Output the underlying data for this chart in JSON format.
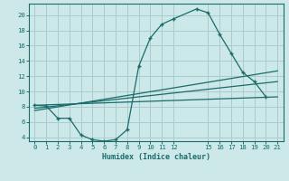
{
  "xlabel": "Humidex (Indice chaleur)",
  "bg_color": "#cce8e8",
  "grid_color": "#aacccc",
  "line_color": "#1a6b6b",
  "xlim": [
    -0.5,
    21.5
  ],
  "ylim": [
    3.5,
    21.5
  ],
  "xticks": [
    0,
    1,
    2,
    3,
    4,
    5,
    6,
    7,
    8,
    9,
    10,
    11,
    12,
    15,
    16,
    17,
    18,
    19,
    20,
    21
  ],
  "yticks": [
    4,
    6,
    8,
    10,
    12,
    14,
    16,
    18,
    20
  ],
  "xtick_labels": [
    "0",
    "1",
    "2",
    "3",
    "4",
    "5",
    "6",
    "7",
    "8",
    "9",
    "10",
    "11",
    "12",
    "15",
    "16",
    "17",
    "18",
    "19",
    "20",
    "21"
  ],
  "curve_x": [
    0,
    1,
    2,
    3,
    4,
    5,
    6,
    7,
    8,
    9,
    10,
    11,
    12,
    14,
    15,
    16,
    17,
    18,
    19,
    20
  ],
  "curve_y": [
    8.2,
    8.1,
    6.5,
    6.5,
    4.3,
    3.7,
    3.5,
    3.7,
    5.0,
    13.3,
    17.0,
    18.8,
    19.5,
    20.8,
    20.3,
    17.5,
    15.0,
    12.5,
    11.3,
    9.3
  ],
  "line1_x": [
    0,
    21
  ],
  "line1_y": [
    8.2,
    9.3
  ],
  "line2_x": [
    0,
    21
  ],
  "line2_y": [
    7.8,
    11.3
  ],
  "line3_x": [
    0,
    21
  ],
  "line3_y": [
    7.5,
    12.7
  ]
}
